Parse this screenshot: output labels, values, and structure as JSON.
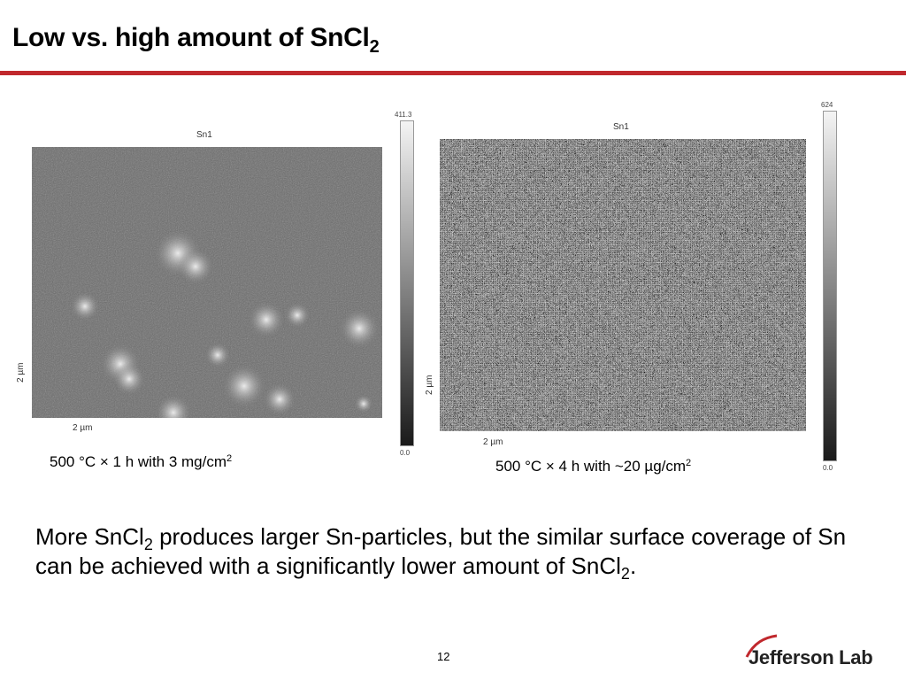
{
  "slide": {
    "title_main": "Low vs. high amount of SnCl",
    "title_sub": "2",
    "page_number": "12",
    "logo_text": "Jefferson Lab"
  },
  "left_map": {
    "label": "Sn1",
    "x_axis": "2 µm",
    "y_axis": "2 µm",
    "scale_max": "411.3",
    "scale_min": "0.0",
    "caption_main": "500 °C × 1 h with 3 mg/cm",
    "caption_sup": "2"
  },
  "right_map": {
    "label": "Sn1",
    "x_axis": "2 µm",
    "y_axis": "2 µm",
    "scale_max": "624",
    "scale_min": "0.0",
    "caption_main": "500 °C × 4 h with ~20 µg/cm",
    "caption_sup": "2"
  },
  "conclusion": {
    "part1": "More SnCl",
    "sub1": "2",
    "part2": " produces larger Sn-particles, but the similar surface coverage of Sn can be achieved with a significantly lower amount of SnCl",
    "sub2": "2",
    "part3": "."
  }
}
